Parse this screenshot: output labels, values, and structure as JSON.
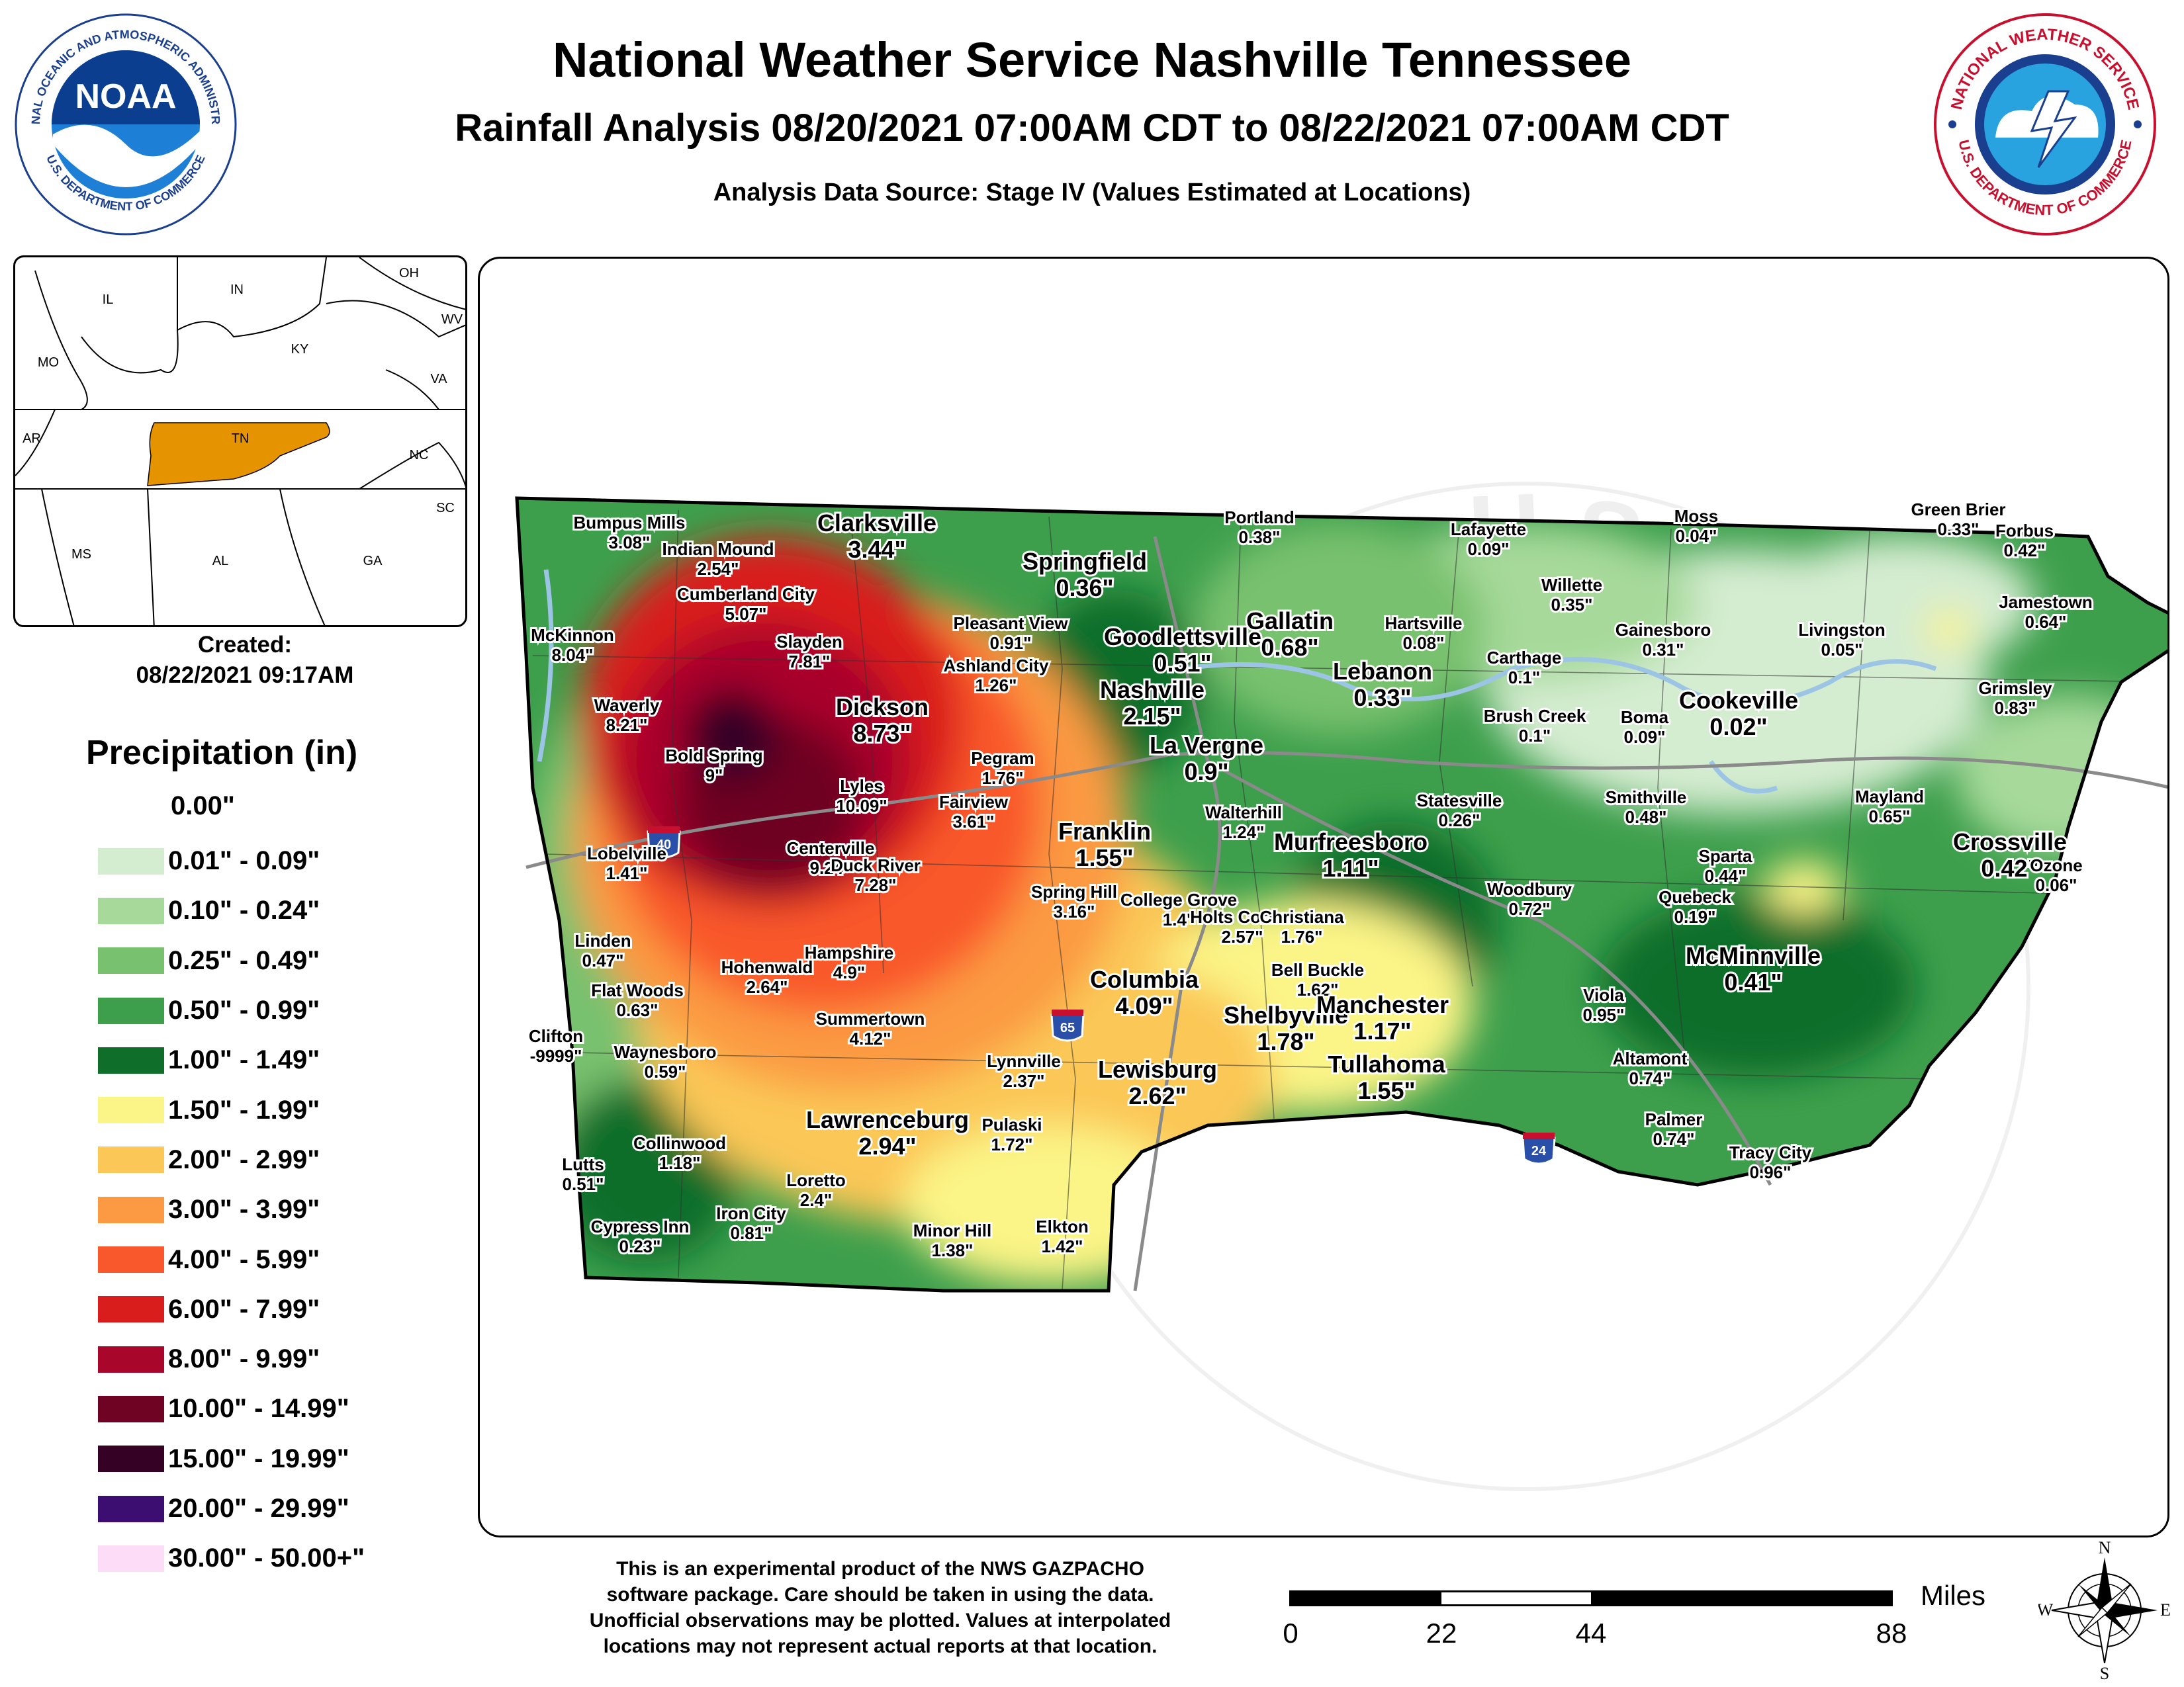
{
  "header": {
    "title": "National Weather Service Nashville Tennessee",
    "subtitle": "Rainfall Analysis 08/20/2021 07:00AM CDT to 08/22/2021 07:00AM CDT",
    "source": "Analysis Data Source: Stage IV (Values Estimated at Locations)"
  },
  "logos": {
    "noara_center": "NOAA",
    "noaa_ring": "NATIONAL OCEANIC AND ATMOSPHERIC ADMINISTRATION",
    "noaa_ring_bottom": "U.S. DEPARTMENT OF COMMERCE",
    "nws_ring": "NATIONAL WEATHER SERVICE",
    "nws_ring_bottom": "U.S. DEPARTMENT OF COMMERCE"
  },
  "inset": {
    "states": [
      "IL",
      "IN",
      "OH",
      "WV",
      "MO",
      "KY",
      "VA",
      "AR",
      "TN",
      "NC",
      "SC",
      "MS",
      "AL",
      "GA"
    ],
    "highlight_color": "#e59400"
  },
  "created": {
    "label": "Created:",
    "timestamp": "08/22/2021 09:17AM"
  },
  "legend": {
    "title": "Precipitation (in)",
    "no_data": "0.00\"",
    "items": [
      {
        "label": "0.01\" - 0.09\"",
        "color": "#d4ecd0"
      },
      {
        "label": "0.10\" - 0.24\"",
        "color": "#a6d99a"
      },
      {
        "label": "0.25\" - 0.49\"",
        "color": "#78c16e"
      },
      {
        "label": "0.50\" - 0.99\"",
        "color": "#3d9f4c"
      },
      {
        "label": "1.00\" - 1.49\"",
        "color": "#0f6e2a"
      },
      {
        "label": "1.50\" - 1.99\"",
        "color": "#fbf486"
      },
      {
        "label": "2.00\" - 2.99\"",
        "color": "#fbc757"
      },
      {
        "label": "3.00\" - 3.99\"",
        "color": "#fb9a42"
      },
      {
        "label": "4.00\" - 5.99\"",
        "color": "#f9582c"
      },
      {
        "label": "6.00\" - 7.99\"",
        "color": "#d91d1d"
      },
      {
        "label": "8.00\" - 9.99\"",
        "color": "#a8062a"
      },
      {
        "label": "10.00\" - 14.99\"",
        "color": "#6e0324"
      },
      {
        "label": "15.00\" - 19.99\"",
        "color": "#350226"
      },
      {
        "label": "20.00\" - 29.99\"",
        "color": "#3d0e72"
      },
      {
        "label": "30.00\" - 50.00+\"",
        "color": "#fddcf7"
      }
    ]
  },
  "map": {
    "watermark": "NATIONAL WEATHER SERVICE · U.S. DEPARTMENT OF COMMERCE",
    "interstates": [
      "40",
      "65",
      "24"
    ],
    "places": [
      {
        "name": "Bumpus Mills",
        "value": "3.08\"",
        "big": false
      },
      {
        "name": "Indian Mound",
        "value": "2.54\"",
        "big": false
      },
      {
        "name": "Clarksville",
        "value": "3.44\"",
        "big": true
      },
      {
        "name": "Cumberland City",
        "value": "5.07\"",
        "big": false
      },
      {
        "name": "McKinnon",
        "value": "8.04\"",
        "big": false
      },
      {
        "name": "Slayden",
        "value": "7.81\"",
        "big": false
      },
      {
        "name": "Waverly",
        "value": "8.21\"",
        "big": false
      },
      {
        "name": "Dickson",
        "value": "8.73\"",
        "big": true
      },
      {
        "name": "Bold Spring",
        "value": "9\"",
        "big": false
      },
      {
        "name": "Lyles",
        "value": "10.09\"",
        "big": false
      },
      {
        "name": "Lobelville",
        "value": "1.41\"",
        "big": false
      },
      {
        "name": "Centerville",
        "value": "9.24\"",
        "big": false
      },
      {
        "name": "Duck River",
        "value": "7.28\"",
        "big": false
      },
      {
        "name": "Linden",
        "value": "0.47\"",
        "big": false
      },
      {
        "name": "Hohenwald",
        "value": "2.64\"",
        "big": false
      },
      {
        "name": "Hampshire",
        "value": "4.9\"",
        "big": false
      },
      {
        "name": "Flat Woods",
        "value": "0.63\"",
        "big": false
      },
      {
        "name": "Clifton",
        "value": "-9999\"",
        "big": false
      },
      {
        "name": "Summertown",
        "value": "4.12\"",
        "big": false
      },
      {
        "name": "Waynesboro",
        "value": "0.59\"",
        "big": false
      },
      {
        "name": "Lawrenceburg",
        "value": "2.94\"",
        "big": true
      },
      {
        "name": "Collinwood",
        "value": "1.18\"",
        "big": false
      },
      {
        "name": "Lutts",
        "value": "0.51\"",
        "big": false
      },
      {
        "name": "Loretto",
        "value": "2.4\"",
        "big": false
      },
      {
        "name": "Iron City",
        "value": "0.81\"",
        "big": false
      },
      {
        "name": "Cypress Inn",
        "value": "0.23\"",
        "big": false
      },
      {
        "name": "Springfield",
        "value": "0.36\"",
        "big": true
      },
      {
        "name": "Pleasant View",
        "value": "0.91\"",
        "big": false
      },
      {
        "name": "Ashland City",
        "value": "1.26\"",
        "big": false
      },
      {
        "name": "Pegram",
        "value": "1.76\"",
        "big": false
      },
      {
        "name": "Fairview",
        "value": "3.61\"",
        "big": false
      },
      {
        "name": "Franklin",
        "value": "1.55\"",
        "big": true
      },
      {
        "name": "Spring Hill",
        "value": "3.16\"",
        "big": false
      },
      {
        "name": "Columbia",
        "value": "4.09\"",
        "big": true
      },
      {
        "name": "Lewisburg",
        "value": "2.62\"",
        "big": true
      },
      {
        "name": "Lynnville",
        "value": "2.37\"",
        "big": false
      },
      {
        "name": "Pulaski",
        "value": "1.72\"",
        "big": false
      },
      {
        "name": "Minor Hill",
        "value": "1.38\"",
        "big": false
      },
      {
        "name": "Elkton",
        "value": "1.42\"",
        "big": false
      },
      {
        "name": "Portland",
        "value": "0.38\"",
        "big": false
      },
      {
        "name": "Gallatin",
        "value": "0.68\"",
        "big": true
      },
      {
        "name": "Goodlettsville",
        "value": "0.51\"",
        "big": true
      },
      {
        "name": "Nashville",
        "value": "2.15\"",
        "big": true
      },
      {
        "name": "La Vergne",
        "value": "0.9\"",
        "big": true
      },
      {
        "name": "Murfreesboro",
        "value": "1.11\"",
        "big": true
      },
      {
        "name": "College Grove",
        "value": "1.4\"",
        "big": false
      },
      {
        "name": "Holts Corner",
        "value": "2.57\"",
        "big": false
      },
      {
        "name": "Christiana",
        "value": "1.76\"",
        "big": false
      },
      {
        "name": "Bell Buckle",
        "value": "1.62\"",
        "big": false
      },
      {
        "name": "Shelbyville",
        "value": "1.78\"",
        "big": true
      },
      {
        "name": "Tullahoma",
        "value": "1.55\"",
        "big": true
      },
      {
        "name": "Manchester",
        "value": "1.17\"",
        "big": true
      },
      {
        "name": "Walterhill",
        "value": "1.24\"",
        "big": false
      },
      {
        "name": "Lafayette",
        "value": "0.09\"",
        "big": false
      },
      {
        "name": "Hartsville",
        "value": "0.08\"",
        "big": false
      },
      {
        "name": "Lebanon",
        "value": "0.33\"",
        "big": true
      },
      {
        "name": "Willette",
        "value": "0.35\"",
        "big": false
      },
      {
        "name": "Moss",
        "value": "0.04\"",
        "big": false
      },
      {
        "name": "Carthage",
        "value": "0.1\"",
        "big": false
      },
      {
        "name": "Gainesboro",
        "value": "0.31\"",
        "big": false
      },
      {
        "name": "Brush Creek",
        "value": "0.1\"",
        "big": false
      },
      {
        "name": "Boma",
        "value": "0.09\"",
        "big": false
      },
      {
        "name": "Statesville",
        "value": "0.26\"",
        "big": false
      },
      {
        "name": "Smithville",
        "value": "0.48\"",
        "big": false
      },
      {
        "name": "Woodbury",
        "value": "0.72\"",
        "big": false
      },
      {
        "name": "Green Brier",
        "value": "0.33\"",
        "big": false
      },
      {
        "name": "Forbus",
        "value": "0.42\"",
        "big": false
      },
      {
        "name": "Jamestown",
        "value": "0.64\"",
        "big": false
      },
      {
        "name": "Livingston",
        "value": "0.05\"",
        "big": false
      },
      {
        "name": "Grimsley",
        "value": "0.83\"",
        "big": false
      },
      {
        "name": "Cookeville",
        "value": "0.02\"",
        "big": true
      },
      {
        "name": "Mayland",
        "value": "0.65\"",
        "big": false
      },
      {
        "name": "Crossville",
        "value": "0.42\"",
        "big": true
      },
      {
        "name": "Ozone",
        "value": "0.06\"",
        "big": false
      },
      {
        "name": "Sparta",
        "value": "0.44\"",
        "big": false
      },
      {
        "name": "Quebeck",
        "value": "0.19\"",
        "big": false
      },
      {
        "name": "McMinnville",
        "value": "0.41\"",
        "big": true
      },
      {
        "name": "Viola",
        "value": "0.95\"",
        "big": false
      },
      {
        "name": "Altamont",
        "value": "0.74\"",
        "big": false
      },
      {
        "name": "Palmer",
        "value": "0.74\"",
        "big": false
      },
      {
        "name": "Tracy City",
        "value": "0.96\"",
        "big": false
      }
    ]
  },
  "footer": {
    "disclaimer_lines": [
      "This is an experimental product of the NWS GAZPACHO",
      "software package. Care should be taken in using the data.",
      "Unofficial observations may be plotted. Values at interpolated",
      "locations may not represent actual reports at that location."
    ],
    "scale": {
      "units": "Miles",
      "ticks": [
        "0",
        "22",
        "44",
        "88"
      ]
    },
    "compass": {
      "n": "N",
      "s": "S",
      "e": "E",
      "w": "W"
    }
  }
}
